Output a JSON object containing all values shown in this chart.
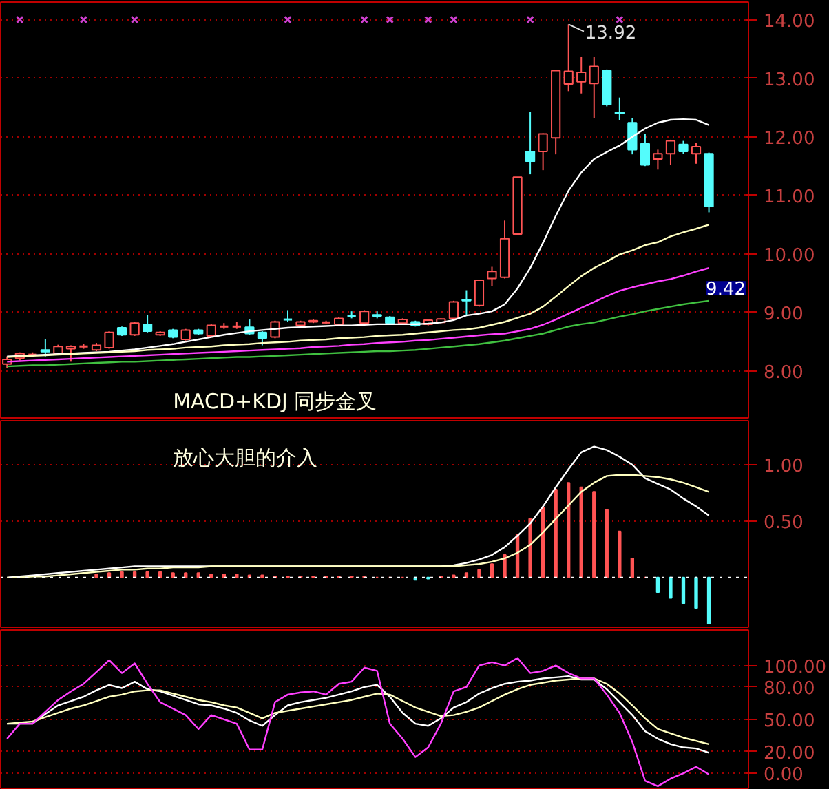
{
  "chart_data": [
    {
      "type": "candlestick",
      "categories": [
        null,
        null,
        null,
        null,
        null,
        null,
        null,
        null,
        null,
        null,
        null,
        null,
        null,
        null,
        null,
        null,
        null,
        null,
        null,
        null,
        null,
        null,
        null,
        null,
        null,
        null,
        null,
        null,
        null,
        null,
        null,
        null,
        null,
        null,
        null,
        null,
        null,
        null,
        null,
        null,
        null,
        null,
        null,
        null,
        null,
        null,
        null,
        null,
        null,
        null,
        null,
        null,
        null,
        null,
        null,
        null
      ],
      "ohlc": [
        [
          8.12,
          8.25,
          8.05,
          8.2
        ],
        [
          8.22,
          8.32,
          8.18,
          8.3
        ],
        [
          8.28,
          8.32,
          8.24,
          8.28
        ],
        [
          8.36,
          8.55,
          8.25,
          8.33
        ],
        [
          8.3,
          8.45,
          8.28,
          8.42
        ],
        [
          8.38,
          8.44,
          8.16,
          8.42
        ],
        [
          8.42,
          8.46,
          8.38,
          8.42
        ],
        [
          8.36,
          8.48,
          8.34,
          8.44
        ],
        [
          8.4,
          8.68,
          8.38,
          8.66
        ],
        [
          8.74,
          8.76,
          8.6,
          8.62
        ],
        [
          8.62,
          8.84,
          8.6,
          8.82
        ],
        [
          8.8,
          8.96,
          8.66,
          8.68
        ],
        [
          8.62,
          8.68,
          8.6,
          8.66
        ],
        [
          8.7,
          8.72,
          8.56,
          8.58
        ],
        [
          8.54,
          8.72,
          8.52,
          8.7
        ],
        [
          8.7,
          8.72,
          8.62,
          8.64
        ],
        [
          8.6,
          8.8,
          8.58,
          8.78
        ],
        [
          8.76,
          8.82,
          8.72,
          8.76
        ],
        [
          8.76,
          8.84,
          8.72,
          8.76
        ],
        [
          8.75,
          8.88,
          8.62,
          8.64
        ],
        [
          8.66,
          8.68,
          8.44,
          8.56
        ],
        [
          8.58,
          8.86,
          8.56,
          8.84
        ],
        [
          8.88,
          9.04,
          8.84,
          8.88
        ],
        [
          8.78,
          8.86,
          8.76,
          8.84
        ],
        [
          8.84,
          8.88,
          8.82,
          8.86
        ],
        [
          8.83,
          8.86,
          8.8,
          8.83
        ],
        [
          8.8,
          8.92,
          8.78,
          8.9
        ],
        [
          8.94,
          9.02,
          8.9,
          8.94
        ],
        [
          8.82,
          9.04,
          8.8,
          9.02
        ],
        [
          8.96,
          9.02,
          8.9,
          8.94
        ],
        [
          8.92,
          8.94,
          8.8,
          8.82
        ],
        [
          8.82,
          8.9,
          8.8,
          8.88
        ],
        [
          8.84,
          8.86,
          8.76,
          8.78
        ],
        [
          8.8,
          8.88,
          8.78,
          8.87
        ],
        [
          8.83,
          8.9,
          8.82,
          8.89
        ],
        [
          8.9,
          9.2,
          8.88,
          9.18
        ],
        [
          9.22,
          9.38,
          8.95,
          9.2
        ],
        [
          9.12,
          9.56,
          9.1,
          9.55
        ],
        [
          9.58,
          9.78,
          9.45,
          9.7
        ],
        [
          9.6,
          10.57,
          9.58,
          10.26
        ],
        [
          10.34,
          11.31,
          10.32,
          11.31
        ],
        [
          11.75,
          12.43,
          11.36,
          11.58
        ],
        [
          11.75,
          12.06,
          11.43,
          12.05
        ],
        [
          11.98,
          13.14,
          11.7,
          13.13
        ],
        [
          12.9,
          13.92,
          12.78,
          13.12
        ],
        [
          12.94,
          13.36,
          12.74,
          13.1
        ],
        [
          12.91,
          13.36,
          12.32,
          13.2
        ],
        [
          13.13,
          13.15,
          12.52,
          12.55
        ],
        [
          12.42,
          12.67,
          12.28,
          12.4
        ],
        [
          12.24,
          12.32,
          11.7,
          11.78
        ],
        [
          11.88,
          12.05,
          11.5,
          11.52
        ],
        [
          11.62,
          11.78,
          11.44,
          11.71
        ],
        [
          11.71,
          11.95,
          11.52,
          11.93
        ],
        [
          11.87,
          11.93,
          11.71,
          11.75
        ],
        [
          11.71,
          11.9,
          11.54,
          11.83
        ],
        [
          11.71,
          11.73,
          10.71,
          10.81
        ]
      ],
      "colors": [
        "#ff5454",
        "#ff5454",
        "#ff5454",
        "#54fcfc",
        "#ff5454",
        "#ff5454",
        "#ff5454",
        "#ff5454",
        "#ff5454",
        "#54fcfc",
        "#ff5454",
        "#54fcfc",
        "#ff5454",
        "#54fcfc",
        "#ff5454",
        "#54fcfc",
        "#ff5454",
        "#ff5454",
        "#ff5454",
        "#54fcfc",
        "#54fcfc",
        "#ff5454",
        "#54fcfc",
        "#ff5454",
        "#ff5454",
        "#ff5454",
        "#ff5454",
        "#54fcfc",
        "#ff5454",
        "#54fcfc",
        "#54fcfc",
        "#ff5454",
        "#54fcfc",
        "#ff5454",
        "#ff5454",
        "#ff5454",
        "#54fcfc",
        "#ff5454",
        "#ff5454",
        "#ff5454",
        "#ff5454",
        "#54fcfc",
        "#ff5454",
        "#ff5454",
        "#ff5454",
        "#ff5454",
        "#ff5454",
        "#54fcfc",
        "#54fcfc",
        "#54fcfc",
        "#54fcfc",
        "#ff5454",
        "#ff5454",
        "#54fcfc",
        "#ff5454",
        "#54fcfc"
      ],
      "series": [
        {
          "type": "line",
          "color": "#ffffff",
          "values": [
            8.25,
            8.26,
            8.27,
            8.28,
            8.29,
            8.3,
            8.31,
            8.32,
            8.33,
            8.35,
            8.37,
            8.4,
            8.43,
            8.46,
            8.5,
            8.54,
            8.58,
            8.62,
            8.65,
            8.68,
            8.7,
            8.72,
            8.74,
            8.75,
            8.76,
            8.77,
            8.78,
            8.78,
            8.79,
            8.8,
            8.8,
            8.8,
            8.8,
            8.81,
            8.83,
            8.87,
            8.95,
            8.98,
            9.02,
            9.14,
            9.41,
            9.76,
            10.19,
            10.65,
            11.08,
            11.39,
            11.62,
            11.74,
            11.85,
            12.0,
            12.14,
            12.24,
            12.29,
            12.3,
            12.29,
            12.2
          ]
        },
        {
          "type": "line",
          "color": "#ffffc0",
          "values": [
            8.24,
            8.25,
            8.26,
            8.27,
            8.28,
            8.29,
            8.3,
            8.31,
            8.32,
            8.33,
            8.34,
            8.36,
            8.37,
            8.38,
            8.4,
            8.41,
            8.42,
            8.44,
            8.45,
            8.46,
            8.48,
            8.49,
            8.5,
            8.52,
            8.53,
            8.54,
            8.56,
            8.57,
            8.58,
            8.6,
            8.61,
            8.62,
            8.64,
            8.66,
            8.68,
            8.7,
            8.71,
            8.74,
            8.79,
            8.84,
            8.91,
            8.98,
            9.1,
            9.27,
            9.45,
            9.62,
            9.76,
            9.87,
            9.99,
            10.06,
            10.15,
            10.2,
            10.3,
            10.37,
            10.43,
            10.5
          ]
        },
        {
          "type": "line",
          "color": "#ff40ff",
          "values": [
            8.16,
            8.17,
            8.18,
            8.19,
            8.2,
            8.21,
            8.22,
            8.23,
            8.24,
            8.25,
            8.26,
            8.27,
            8.28,
            8.29,
            8.3,
            8.31,
            8.32,
            8.33,
            8.34,
            8.35,
            8.36,
            8.37,
            8.38,
            8.39,
            8.41,
            8.42,
            8.43,
            8.45,
            8.46,
            8.48,
            8.49,
            8.5,
            8.52,
            8.53,
            8.55,
            8.57,
            8.59,
            8.61,
            8.63,
            8.64,
            8.68,
            8.72,
            8.79,
            8.88,
            8.98,
            9.08,
            9.18,
            9.28,
            9.37,
            9.43,
            9.48,
            9.53,
            9.57,
            9.63,
            9.7,
            9.76
          ]
        },
        {
          "type": "line",
          "color": "#40c040",
          "values": [
            8.08,
            8.09,
            8.1,
            8.1,
            8.11,
            8.12,
            8.13,
            8.14,
            8.15,
            8.16,
            8.16,
            8.17,
            8.18,
            8.19,
            8.2,
            8.21,
            8.22,
            8.23,
            8.24,
            8.24,
            8.25,
            8.26,
            8.27,
            8.28,
            8.29,
            8.3,
            8.31,
            8.32,
            8.33,
            8.34,
            8.34,
            8.35,
            8.36,
            8.38,
            8.4,
            8.42,
            8.44,
            8.46,
            8.49,
            8.52,
            8.56,
            8.6,
            8.64,
            8.7,
            8.76,
            8.8,
            8.83,
            8.88,
            8.93,
            8.97,
            9.02,
            9.06,
            9.1,
            9.14,
            9.17,
            9.2
          ]
        },
        {
          "type": "scatter",
          "marker": "cross",
          "color": "#d040d0",
          "values": [
            null,
            14.0,
            null,
            null,
            null,
            null,
            14.0,
            null,
            null,
            null,
            14.0,
            null,
            null,
            null,
            null,
            null,
            null,
            null,
            null,
            null,
            null,
            null,
            14.0,
            null,
            null,
            null,
            null,
            null,
            14.0,
            null,
            14.0,
            null,
            null,
            14.0,
            null,
            14.0,
            null,
            null,
            null,
            null,
            null,
            14.0,
            null,
            null,
            null,
            null,
            null,
            null,
            14.0,
            null,
            null,
            null,
            null,
            null,
            null,
            null
          ]
        }
      ],
      "ylim": [
        7.2,
        14.3
      ],
      "yticks": [
        {
          "value": 8,
          "label": "8.00"
        },
        {
          "value": 9,
          "label": "9.00"
        },
        {
          "value": 10,
          "label": "10.00"
        },
        {
          "value": 11,
          "label": "11.00"
        },
        {
          "value": 12,
          "label": "12.00"
        },
        {
          "value": 13,
          "label": "13.00"
        },
        {
          "value": 14,
          "label": "14.00"
        }
      ],
      "grid": "y",
      "tick_labels": "y",
      "annotations": [
        "MACD+KDJ 同步金叉",
        {
          "text": "13.92",
          "y": 13.92
        },
        {
          "text": "9.42",
          "y": 9.42
        }
      ]
    },
    {
      "type": "bar",
      "categories": [
        null,
        null,
        null,
        null,
        null,
        null,
        null,
        null,
        null,
        null,
        null,
        null,
        null,
        null,
        null,
        null,
        null,
        null,
        null,
        null,
        null,
        null,
        null,
        null,
        null,
        null,
        null,
        null,
        null,
        null,
        null,
        null,
        null,
        null,
        null,
        null,
        null,
        null,
        null,
        null,
        null,
        null,
        null,
        null,
        null,
        null,
        null,
        null,
        null,
        null,
        null,
        null,
        null,
        null,
        null,
        null
      ],
      "values": [
        null,
        null,
        null,
        null,
        null,
        null,
        null,
        0.03,
        0.04,
        0.05,
        0.05,
        0.05,
        0.05,
        0.04,
        0.04,
        0.04,
        0.03,
        0.03,
        0.03,
        0.02,
        0.02,
        0.01,
        0.01,
        0.01,
        0.01,
        0.01,
        0.01,
        0.01,
        0.01,
        0.0,
        0.0,
        0.0,
        -0.02,
        -0.01,
        0.01,
        0.02,
        0.04,
        0.07,
        0.12,
        0.2,
        0.38,
        0.52,
        0.62,
        0.78,
        0.84,
        0.8,
        0.76,
        0.6,
        0.41,
        0.17,
        0.0,
        -0.13,
        -0.18,
        -0.23,
        -0.27,
        -0.41
      ],
      "colors": [
        "#ff5454",
        "#ff5454",
        "#ff5454",
        "#ff5454",
        "#ff5454",
        "#ff5454",
        "#ff5454",
        "#ff5454",
        "#ff5454",
        "#ff5454",
        "#ff5454",
        "#ff5454",
        "#ff5454",
        "#ff5454",
        "#ff5454",
        "#ff5454",
        "#ff5454",
        "#ff5454",
        "#ff5454",
        "#ff5454",
        "#ff5454",
        "#ff5454",
        "#ff5454",
        "#ff5454",
        "#ff5454",
        "#ff5454",
        "#ff5454",
        "#ff5454",
        "#ff5454",
        "#ff5454",
        "#ff5454",
        "#ff5454",
        "#54fcfc",
        "#54fcfc",
        "#ff5454",
        "#ff5454",
        "#ff5454",
        "#ff5454",
        "#ff5454",
        "#ff5454",
        "#ff5454",
        "#ff5454",
        "#ff5454",
        "#ff5454",
        "#ff5454",
        "#ff5454",
        "#ff5454",
        "#ff5454",
        "#ff5454",
        "#ff5454",
        "#ff5454",
        "#54fcfc",
        "#54fcfc",
        "#54fcfc",
        "#54fcfc",
        "#54fcfc"
      ],
      "series": [
        {
          "type": "line",
          "color": "#ffffff",
          "values": [
            0.0,
            0.01,
            0.02,
            0.03,
            0.04,
            0.05,
            0.06,
            0.07,
            0.08,
            0.09,
            0.1,
            0.1,
            0.1,
            0.1,
            0.1,
            0.1,
            0.1,
            0.1,
            0.1,
            0.1,
            0.1,
            0.1,
            0.1,
            0.1,
            0.1,
            0.1,
            0.1,
            0.1,
            0.1,
            0.1,
            0.1,
            0.1,
            0.1,
            0.1,
            0.1,
            0.11,
            0.13,
            0.16,
            0.2,
            0.27,
            0.37,
            0.48,
            0.63,
            0.8,
            0.96,
            1.11,
            1.16,
            1.13,
            1.07,
            1.0,
            0.88,
            0.83,
            0.78,
            0.7,
            0.63,
            0.55
          ]
        },
        {
          "type": "line",
          "color": "#ffffc0",
          "values": [
            0.0,
            0.0,
            0.01,
            0.01,
            0.02,
            0.03,
            0.04,
            0.05,
            0.06,
            0.07,
            0.07,
            0.08,
            0.08,
            0.09,
            0.09,
            0.09,
            0.1,
            0.1,
            0.1,
            0.1,
            0.1,
            0.1,
            0.1,
            0.1,
            0.1,
            0.1,
            0.1,
            0.1,
            0.1,
            0.1,
            0.1,
            0.1,
            0.1,
            0.1,
            0.1,
            0.1,
            0.11,
            0.12,
            0.14,
            0.17,
            0.22,
            0.29,
            0.4,
            0.52,
            0.64,
            0.76,
            0.84,
            0.9,
            0.91,
            0.91,
            0.9,
            0.89,
            0.87,
            0.84,
            0.8,
            0.76
          ]
        }
      ],
      "ylim": [
        -0.44,
        1.39
      ],
      "yticks": [
        {
          "value": 0.5,
          "label": "0.50"
        },
        {
          "value": 1,
          "label": "1.00"
        }
      ],
      "grid": "y",
      "tick_labels": "y",
      "ref_lines": [
        {
          "axis": "y",
          "value": 0,
          "label": null,
          "color": "#ffffff",
          "line_style": "dotted"
        }
      ],
      "annotations": [
        "放心大胆的介入"
      ]
    },
    {
      "type": "line",
      "categories": [
        null,
        null,
        null,
        null,
        null,
        null,
        null,
        null,
        null,
        null,
        null,
        null,
        null,
        null,
        null,
        null,
        null,
        null,
        null,
        null,
        null,
        null,
        null,
        null,
        null,
        null,
        null,
        null,
        null,
        null,
        null,
        null,
        null,
        null,
        null,
        null,
        null,
        null,
        null,
        null,
        null,
        null,
        null,
        null,
        null,
        null,
        null,
        null,
        null,
        null,
        null,
        null,
        null,
        null,
        null,
        null
      ],
      "series": [
        {
          "color": "#ffffff",
          "values": [
            46,
            46,
            46,
            55,
            63,
            67,
            71,
            77,
            82,
            79,
            85,
            78,
            76,
            72,
            68,
            64,
            63,
            60,
            56,
            49,
            44,
            54,
            63,
            66,
            68,
            70,
            73,
            76,
            80,
            82,
            71,
            56,
            46,
            44,
            51,
            61,
            66,
            74,
            79,
            83,
            85,
            86,
            88,
            89,
            90,
            87,
            87,
            78,
            66,
            54,
            39,
            32,
            27,
            24,
            23,
            19
          ]
        },
        {
          "color": "#ffffc0",
          "values": [
            46,
            47,
            48,
            52,
            56,
            60,
            63,
            67,
            71,
            73,
            76,
            77,
            77,
            74,
            71,
            68,
            66,
            63,
            61,
            56,
            51,
            56,
            58,
            60,
            62,
            64,
            66,
            68,
            71,
            74,
            73,
            67,
            61,
            57,
            53,
            54,
            57,
            61,
            67,
            73,
            78,
            82,
            84,
            86,
            87,
            88,
            88,
            83,
            74,
            63,
            51,
            41,
            37,
            33,
            30,
            27
          ]
        },
        {
          "color": "#ff40ff",
          "values": [
            32,
            46,
            46,
            57,
            68,
            76,
            83,
            94,
            105,
            93,
            102,
            83,
            66,
            60,
            54,
            41,
            54,
            50,
            46,
            22,
            22,
            66,
            73,
            75,
            76,
            73,
            83,
            85,
            98,
            95,
            46,
            32,
            15,
            24,
            46,
            76,
            80,
            100,
            103,
            100,
            107,
            93,
            95,
            100,
            93,
            88,
            88,
            73,
            56,
            29,
            -7,
            -12,
            -5,
            0,
            6,
            -1
          ]
        }
      ],
      "ylim": [
        -14,
        133
      ],
      "yticks": [
        {
          "value": 0,
          "label": "0.00"
        },
        {
          "value": 20,
          "label": "20.00"
        },
        {
          "value": 50,
          "label": "50.00"
        },
        {
          "value": 80,
          "label": "80.00"
        },
        {
          "value": 100,
          "label": "100.00"
        }
      ],
      "grid": "y",
      "tick_labels": "y"
    }
  ]
}
